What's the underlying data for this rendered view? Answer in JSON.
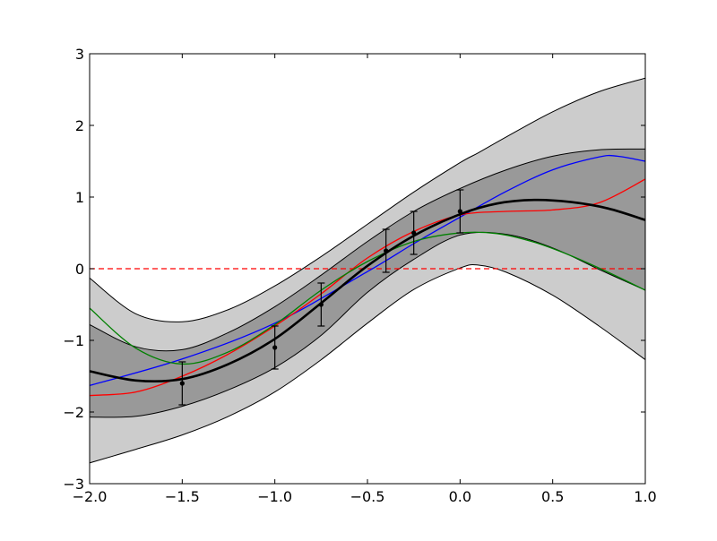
{
  "chart_data": {
    "type": "line",
    "xlim": [
      -2.0,
      1.0
    ],
    "ylim": [
      -3,
      3
    ],
    "x_ticks": [
      -2.0,
      -1.5,
      -1.0,
      -0.5,
      0.0,
      0.5,
      1.0
    ],
    "y_ticks": [
      -3,
      -2,
      -1,
      0,
      1,
      2,
      3
    ],
    "x_tick_labels": [
      "−2.0",
      "−1.5",
      "−1.0",
      "−0.5",
      "0.0",
      "0.5",
      "1.0"
    ],
    "y_tick_labels": [
      "−3",
      "−2",
      "−1",
      "0",
      "1",
      "2",
      "3"
    ],
    "grid": false,
    "legend": "none",
    "reference_line": {
      "y": 0,
      "style": "dashed",
      "color": "#ff0000"
    },
    "mean": {
      "color": "#000000",
      "x": [
        -2.0,
        -1.75,
        -1.5,
        -1.25,
        -1.0,
        -0.75,
        -0.5,
        -0.25,
        0.0,
        0.2,
        0.4,
        0.6,
        0.8,
        1.0
      ],
      "y": [
        -1.43,
        -1.56,
        -1.54,
        -1.33,
        -0.98,
        -0.48,
        0.04,
        0.46,
        0.76,
        0.91,
        0.96,
        0.93,
        0.84,
        0.68
      ]
    },
    "band_inner": {
      "color": "#999999",
      "x": [
        -2.0,
        -1.75,
        -1.5,
        -1.25,
        -1.0,
        -0.75,
        -0.5,
        -0.25,
        0.0,
        0.25,
        0.5,
        0.75,
        1.0
      ],
      "upper": [
        -0.78,
        -1.09,
        -1.13,
        -0.89,
        -0.53,
        -0.09,
        0.38,
        0.8,
        1.12,
        1.38,
        1.57,
        1.66,
        1.67
      ],
      "lower": [
        -2.07,
        -2.06,
        -1.92,
        -1.69,
        -1.38,
        -0.93,
        -0.33,
        0.13,
        0.47,
        0.48,
        0.29,
        -0.01,
        -0.3
      ]
    },
    "band_outer": {
      "color": "#cccccc",
      "x": [
        -2.0,
        -1.75,
        -1.5,
        -1.25,
        -1.0,
        -0.75,
        -0.5,
        -0.25,
        0.0,
        0.1,
        0.25,
        0.5,
        0.75,
        1.0
      ],
      "upper": [
        -0.13,
        -0.63,
        -0.74,
        -0.57,
        -0.24,
        0.17,
        0.62,
        1.07,
        1.48,
        1.62,
        1.84,
        2.19,
        2.47,
        2.66
      ],
      "lower": [
        -2.71,
        -2.52,
        -2.32,
        -2.06,
        -1.72,
        -1.27,
        -0.76,
        -0.29,
        0.01,
        0.05,
        -0.05,
        -0.37,
        -0.8,
        -1.27
      ]
    },
    "samples": [
      {
        "color": "#0000ff",
        "x": [
          -2.0,
          -1.5,
          -1.0,
          -0.5,
          -0.25,
          0.0,
          0.25,
          0.5,
          0.75,
          0.85,
          1.0
        ],
        "y": [
          -1.63,
          -1.26,
          -0.76,
          -0.04,
          0.35,
          0.72,
          1.08,
          1.38,
          1.56,
          1.57,
          1.5
        ]
      },
      {
        "color": "#ff0000",
        "x": [
          -2.0,
          -1.75,
          -1.5,
          -1.25,
          -1.0,
          -0.75,
          -0.5,
          -0.25,
          0.0,
          0.25,
          0.5,
          0.75,
          1.0
        ],
        "y": [
          -1.77,
          -1.72,
          -1.5,
          -1.19,
          -0.8,
          -0.35,
          0.15,
          0.52,
          0.75,
          0.8,
          0.82,
          0.92,
          1.25
        ]
      },
      {
        "color": "#008000",
        "x": [
          -2.0,
          -1.75,
          -1.5,
          -1.25,
          -1.0,
          -0.75,
          -0.5,
          -0.25,
          0.0,
          0.2,
          0.4,
          0.6,
          0.8,
          1.0
        ],
        "y": [
          -0.55,
          -1.11,
          -1.33,
          -1.16,
          -0.78,
          -0.3,
          0.1,
          0.38,
          0.5,
          0.49,
          0.37,
          0.18,
          -0.05,
          -0.3
        ]
      }
    ],
    "observations": {
      "color": "#000000",
      "x": [
        -1.5,
        -1.0,
        -0.75,
        -0.4,
        -0.25,
        0.0
      ],
      "y": [
        -1.6,
        -1.1,
        -0.5,
        0.25,
        0.5,
        0.8
      ],
      "err": [
        0.3,
        0.3,
        0.3,
        0.3,
        0.3,
        0.3
      ]
    }
  }
}
